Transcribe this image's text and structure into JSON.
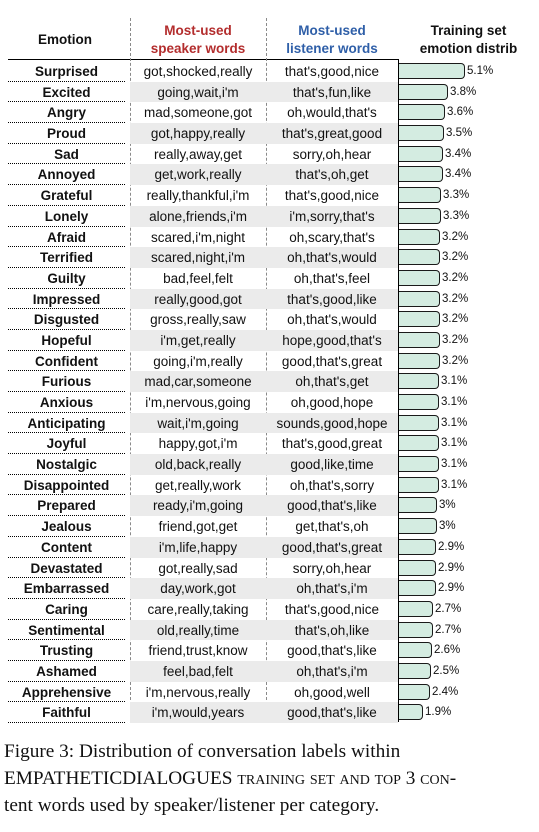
{
  "header": {
    "emotion": "Emotion",
    "speaker_line1": "Most-used",
    "speaker_line2": "speaker words",
    "listener_line1": "Most-used",
    "listener_line2": "listener words",
    "dist_line1": "Training set",
    "dist_line2": "emotion distrib"
  },
  "colors": {
    "speaker_header": "#b32d2d",
    "listener_header": "#2f5fa8",
    "bar_fill": "#d4ece1"
  },
  "rows": [
    {
      "emotion": "Surprised",
      "speaker": "got,shocked,really",
      "listener": "that's,good,nice",
      "pct": "5.1%"
    },
    {
      "emotion": "Excited",
      "speaker": "going,wait,i'm",
      "listener": "that's,fun,like",
      "pct": "3.8%"
    },
    {
      "emotion": "Angry",
      "speaker": "mad,someone,got",
      "listener": "oh,would,that's",
      "pct": "3.6%"
    },
    {
      "emotion": "Proud",
      "speaker": "got,happy,really",
      "listener": "that's,great,good",
      "pct": "3.5%"
    },
    {
      "emotion": "Sad",
      "speaker": "really,away,get",
      "listener": "sorry,oh,hear",
      "pct": "3.4%"
    },
    {
      "emotion": "Annoyed",
      "speaker": "get,work,really",
      "listener": "that's,oh,get",
      "pct": "3.4%"
    },
    {
      "emotion": "Grateful",
      "speaker": "really,thankful,i'm",
      "listener": "that's,good,nice",
      "pct": "3.3%"
    },
    {
      "emotion": "Lonely",
      "speaker": "alone,friends,i'm",
      "listener": "i'm,sorry,that's",
      "pct": "3.3%"
    },
    {
      "emotion": "Afraid",
      "speaker": "scared,i'm,night",
      "listener": "oh,scary,that's",
      "pct": "3.2%"
    },
    {
      "emotion": "Terrified",
      "speaker": "scared,night,i'm",
      "listener": "oh,that's,would",
      "pct": "3.2%"
    },
    {
      "emotion": "Guilty",
      "speaker": "bad,feel,felt",
      "listener": "oh,that's,feel",
      "pct": "3.2%"
    },
    {
      "emotion": "Impressed",
      "speaker": "really,good,got",
      "listener": "that's,good,like",
      "pct": "3.2%"
    },
    {
      "emotion": "Disgusted",
      "speaker": "gross,really,saw",
      "listener": "oh,that's,would",
      "pct": "3.2%"
    },
    {
      "emotion": "Hopeful",
      "speaker": "i'm,get,really",
      "listener": "hope,good,that's",
      "pct": "3.2%"
    },
    {
      "emotion": "Confident",
      "speaker": "going,i'm,really",
      "listener": "good,that's,great",
      "pct": "3.2%"
    },
    {
      "emotion": "Furious",
      "speaker": "mad,car,someone",
      "listener": "oh,that's,get",
      "pct": "3.1%"
    },
    {
      "emotion": "Anxious",
      "speaker": "i'm,nervous,going",
      "listener": "oh,good,hope",
      "pct": "3.1%"
    },
    {
      "emotion": "Anticipating",
      "speaker": "wait,i'm,going",
      "listener": "sounds,good,hope",
      "pct": "3.1%"
    },
    {
      "emotion": "Joyful",
      "speaker": "happy,got,i'm",
      "listener": "that's,good,great",
      "pct": "3.1%"
    },
    {
      "emotion": "Nostalgic",
      "speaker": "old,back,really",
      "listener": "good,like,time",
      "pct": "3.1%"
    },
    {
      "emotion": "Disappointed",
      "speaker": "get,really,work",
      "listener": "oh,that's,sorry",
      "pct": "3.1%"
    },
    {
      "emotion": "Prepared",
      "speaker": "ready,i'm,going",
      "listener": "good,that's,like",
      "pct": "3%"
    },
    {
      "emotion": "Jealous",
      "speaker": "friend,got,get",
      "listener": "get,that's,oh",
      "pct": "3%"
    },
    {
      "emotion": "Content",
      "speaker": "i'm,life,happy",
      "listener": "good,that's,great",
      "pct": "2.9%"
    },
    {
      "emotion": "Devastated",
      "speaker": "got,really,sad",
      "listener": "sorry,oh,hear",
      "pct": "2.9%"
    },
    {
      "emotion": "Embarrassed",
      "speaker": "day,work,got",
      "listener": "oh,that's,i'm",
      "pct": "2.9%"
    },
    {
      "emotion": "Caring",
      "speaker": "care,really,taking",
      "listener": "that's,good,nice",
      "pct": "2.7%"
    },
    {
      "emotion": "Sentimental",
      "speaker": "old,really,time",
      "listener": "that's,oh,like",
      "pct": "2.7%"
    },
    {
      "emotion": "Trusting",
      "speaker": "friend,trust,know",
      "listener": "good,that's,like",
      "pct": "2.6%"
    },
    {
      "emotion": "Ashamed",
      "speaker": "feel,bad,felt",
      "listener": "oh,that's,i'm",
      "pct": "2.5%"
    },
    {
      "emotion": "Apprehensive",
      "speaker": "i'm,nervous,really",
      "listener": "oh,good,well",
      "pct": "2.4%"
    },
    {
      "emotion": "Faithful",
      "speaker": "i'm,would,years",
      "listener": "good,that's,like",
      "pct": "1.9%"
    }
  ],
  "chart_data": {
    "type": "bar",
    "orientation": "horizontal",
    "categories": [
      "Surprised",
      "Excited",
      "Angry",
      "Proud",
      "Sad",
      "Annoyed",
      "Grateful",
      "Lonely",
      "Afraid",
      "Terrified",
      "Guilty",
      "Impressed",
      "Disgusted",
      "Hopeful",
      "Confident",
      "Furious",
      "Anxious",
      "Anticipating",
      "Joyful",
      "Nostalgic",
      "Disappointed",
      "Prepared",
      "Jealous",
      "Content",
      "Devastated",
      "Embarrassed",
      "Caring",
      "Sentimental",
      "Trusting",
      "Ashamed",
      "Apprehensive",
      "Faithful"
    ],
    "values": [
      5.1,
      3.8,
      3.6,
      3.5,
      3.4,
      3.4,
      3.3,
      3.3,
      3.2,
      3.2,
      3.2,
      3.2,
      3.2,
      3.2,
      3.2,
      3.1,
      3.1,
      3.1,
      3.1,
      3.1,
      3.1,
      3.0,
      3.0,
      2.9,
      2.9,
      2.9,
      2.7,
      2.7,
      2.6,
      2.5,
      2.4,
      1.9
    ],
    "title": "Training set emotion distrib",
    "xlim": [
      0,
      5.1
    ]
  },
  "caption": {
    "line1": "Figure 3:  Distribution of conversation labels within",
    "line2": "EMPATHETICDIALOGUES training set and top 3 con-",
    "line3": "tent words used by speaker/listener per category."
  }
}
